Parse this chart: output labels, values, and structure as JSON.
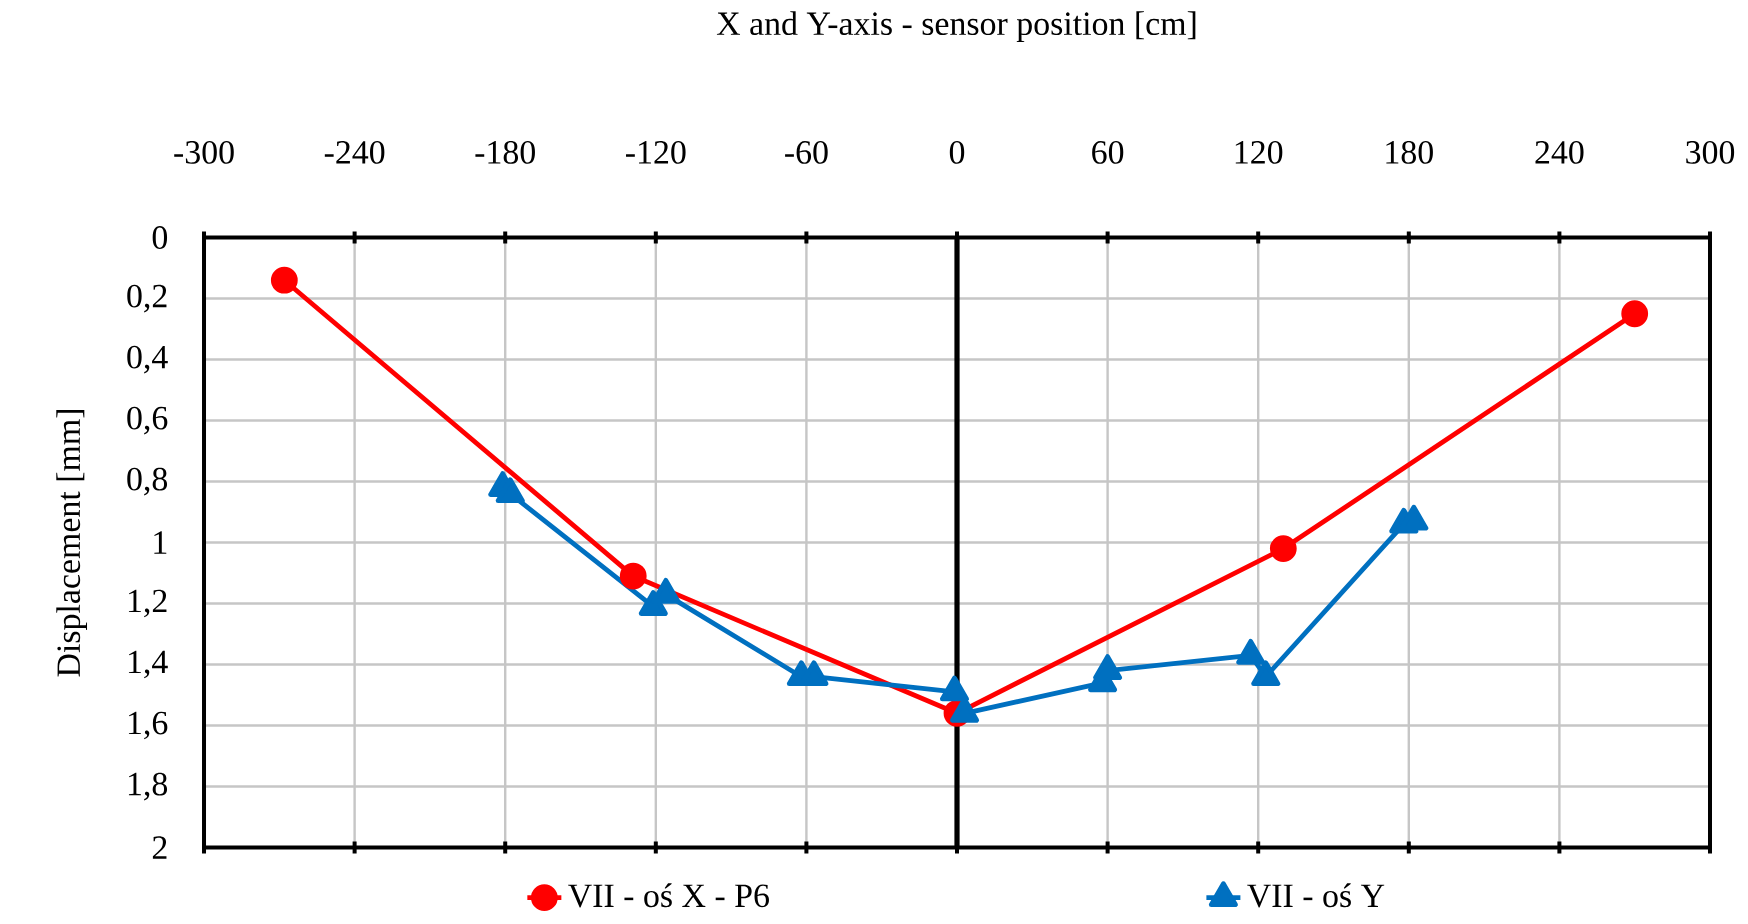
{
  "chart_data": {
    "type": "line",
    "xlabel": "X and Y-axis - sensor position [cm]",
    "ylabel": "Displacement [mm]",
    "xlim": [
      -300,
      300
    ],
    "xticks": [
      -300,
      -240,
      -180,
      -120,
      -60,
      0,
      60,
      120,
      180,
      240,
      300
    ],
    "ylim": [
      2,
      0
    ],
    "yticks": [
      {
        "value": 0,
        "label": "0"
      },
      {
        "value": 0.2,
        "label": "0,2"
      },
      {
        "value": 0.4,
        "label": "0,4"
      },
      {
        "value": 0.6,
        "label": "0,6"
      },
      {
        "value": 0.8,
        "label": "0,8"
      },
      {
        "value": 1,
        "label": "1"
      },
      {
        "value": 1.2,
        "label": "1,2"
      },
      {
        "value": 1.4,
        "label": "1,4"
      },
      {
        "value": 1.6,
        "label": "1,6"
      },
      {
        "value": 1.8,
        "label": "1,8"
      },
      {
        "value": 2,
        "label": "2"
      }
    ],
    "grid": true,
    "legend": "bottom",
    "ref_lines": [
      {
        "axis": "x",
        "value": 0,
        "color": "#000000"
      }
    ],
    "series": [
      {
        "name": "VII - oś X - P6",
        "color": "#ff0000",
        "marker": "circle",
        "x": [
          -268,
          -129,
          0,
          130,
          270
        ],
        "values": [
          0.14,
          1.11,
          1.56,
          1.02,
          0.25
        ]
      },
      {
        "name": "VII - oś Y",
        "color": "#0070c0",
        "marker": "triangle",
        "x": [
          -181,
          -178,
          -121,
          -116,
          -62,
          -57,
          -1,
          3,
          58,
          60,
          117,
          123,
          178,
          182
        ],
        "values": [
          0.82,
          0.84,
          1.21,
          1.17,
          1.44,
          1.44,
          1.49,
          1.56,
          1.46,
          1.42,
          1.37,
          1.44,
          0.94,
          0.93
        ]
      }
    ]
  }
}
